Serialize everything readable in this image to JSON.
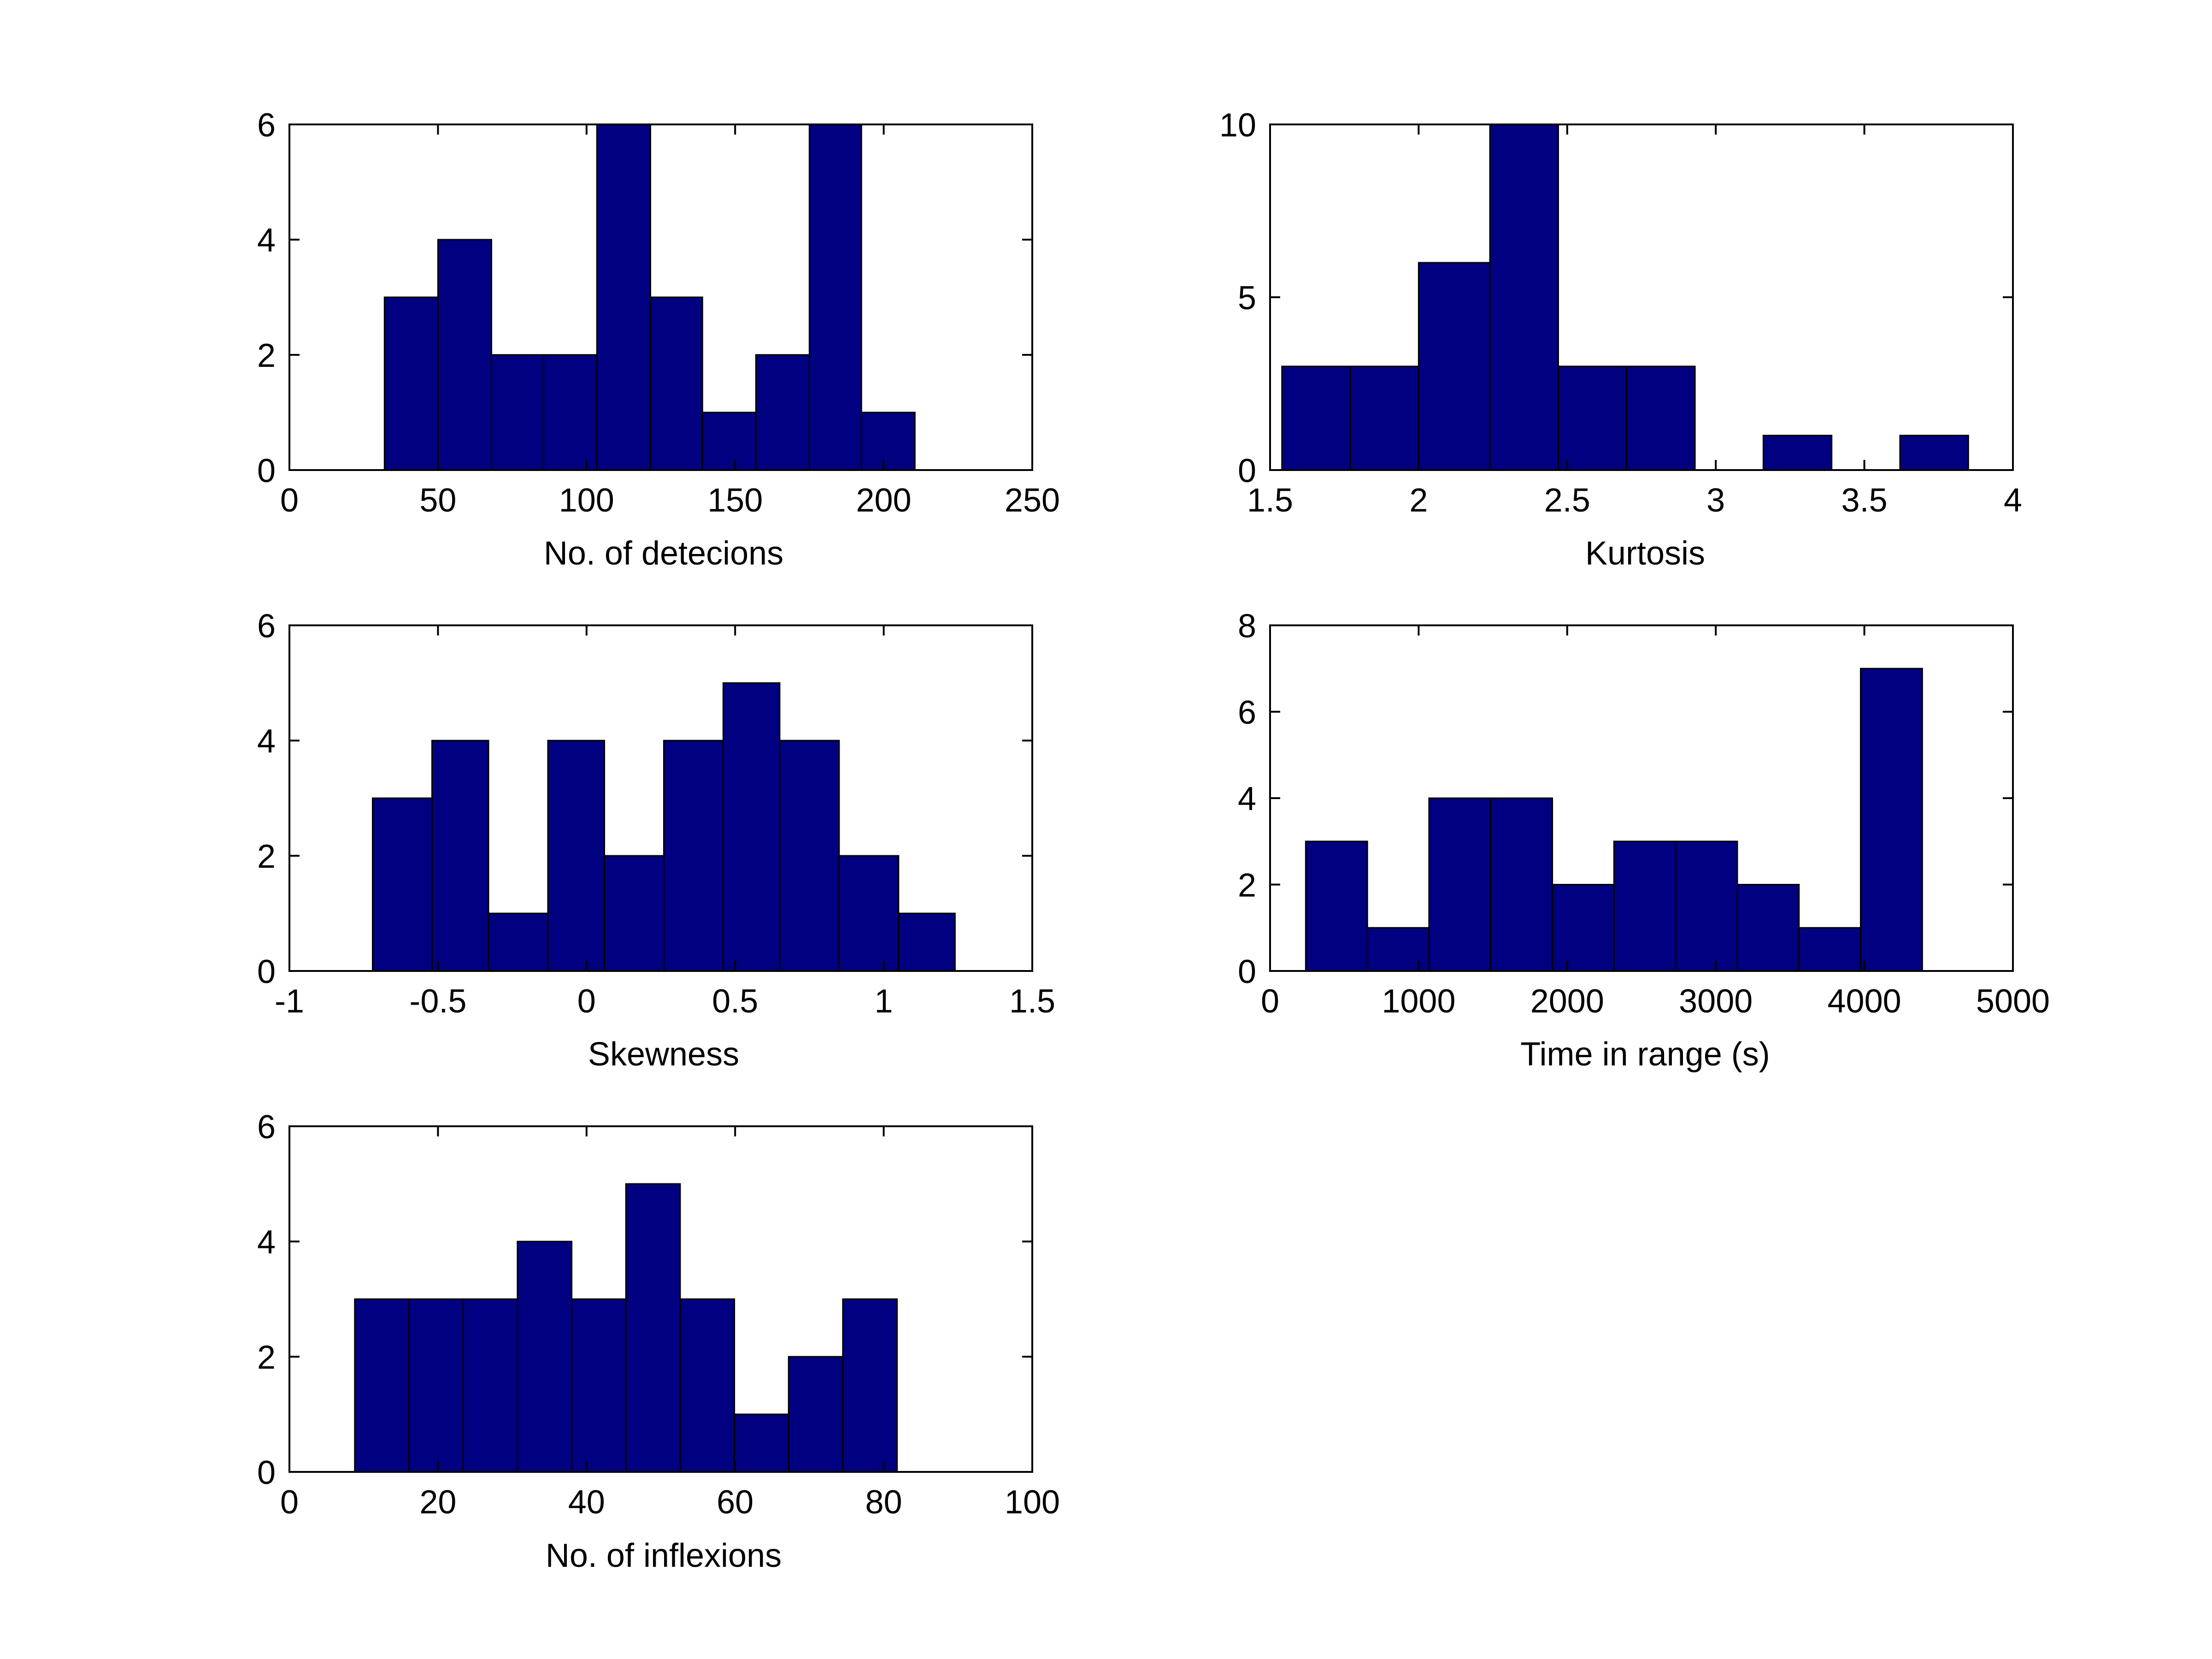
{
  "figure": {
    "background": "#ffffff"
  },
  "style": {
    "bar_color": "#000080",
    "edge_color": "#000000"
  },
  "chart_data": [
    {
      "type": "bar",
      "xlabel": "No. of detecions",
      "ylabel": "",
      "xlim": [
        0,
        250
      ],
      "ylim": [
        0,
        6
      ],
      "xticks": [
        0,
        50,
        100,
        150,
        200,
        250
      ],
      "yticks": [
        0,
        2,
        4,
        6
      ],
      "xtick_labels": [
        "0",
        "50",
        "100",
        "150",
        "200",
        "250"
      ],
      "ytick_labels": [
        "0",
        "2",
        "4",
        "6"
      ],
      "grid": false,
      "bins": [
        {
          "x0": 32,
          "x1": 50,
          "value": 3
        },
        {
          "x0": 50,
          "x1": 68,
          "value": 4
        },
        {
          "x0": 68,
          "x1": 85.5,
          "value": 2
        },
        {
          "x0": 85.5,
          "x1": 103.5,
          "value": 2
        },
        {
          "x0": 103.5,
          "x1": 121.5,
          "value": 6
        },
        {
          "x0": 121.5,
          "x1": 139,
          "value": 3
        },
        {
          "x0": 139,
          "x1": 157,
          "value": 1
        },
        {
          "x0": 157,
          "x1": 175,
          "value": 2
        },
        {
          "x0": 175,
          "x1": 192.5,
          "value": 6
        },
        {
          "x0": 192.5,
          "x1": 210.5,
          "value": 1
        }
      ]
    },
    {
      "type": "bar",
      "xlabel": "Kurtosis",
      "ylabel": "",
      "xlim": [
        1.5,
        4
      ],
      "ylim": [
        0,
        10
      ],
      "xticks": [
        1.5,
        2,
        2.5,
        3,
        3.5,
        4
      ],
      "yticks": [
        0,
        5,
        10
      ],
      "xtick_labels": [
        "1.5",
        "2",
        "2.5",
        "3",
        "3.5",
        "4"
      ],
      "ytick_labels": [
        "0",
        "5",
        "10"
      ],
      "grid": false,
      "bins": [
        {
          "x0": 1.54,
          "x1": 1.77,
          "value": 3
        },
        {
          "x0": 1.77,
          "x1": 2.0,
          "value": 3
        },
        {
          "x0": 2.0,
          "x1": 2.24,
          "value": 6
        },
        {
          "x0": 2.24,
          "x1": 2.47,
          "value": 10
        },
        {
          "x0": 2.47,
          "x1": 2.7,
          "value": 3
        },
        {
          "x0": 2.7,
          "x1": 2.93,
          "value": 3
        },
        {
          "x0": 2.93,
          "x1": 3.16,
          "value": 0
        },
        {
          "x0": 3.16,
          "x1": 3.39,
          "value": 1
        },
        {
          "x0": 3.39,
          "x1": 3.62,
          "value": 0
        },
        {
          "x0": 3.62,
          "x1": 3.85,
          "value": 1
        }
      ]
    },
    {
      "type": "bar",
      "xlabel": "Skewness",
      "ylabel": "",
      "xlim": [
        -1,
        1.5
      ],
      "ylim": [
        0,
        6
      ],
      "xticks": [
        -1,
        -0.5,
        0,
        0.5,
        1,
        1.5
      ],
      "yticks": [
        0,
        2,
        4,
        6
      ],
      "xtick_labels": [
        "-1",
        "-0.5",
        "0",
        "0.5",
        "1",
        "1.5"
      ],
      "ytick_labels": [
        "0",
        "2",
        "4",
        "6"
      ],
      "grid": false,
      "bins": [
        {
          "x0": -0.72,
          "x1": -0.52,
          "value": 3
        },
        {
          "x0": -0.52,
          "x1": -0.33,
          "value": 4
        },
        {
          "x0": -0.33,
          "x1": -0.13,
          "value": 1
        },
        {
          "x0": -0.13,
          "x1": 0.06,
          "value": 4
        },
        {
          "x0": 0.06,
          "x1": 0.26,
          "value": 2
        },
        {
          "x0": 0.26,
          "x1": 0.46,
          "value": 4
        },
        {
          "x0": 0.46,
          "x1": 0.65,
          "value": 5
        },
        {
          "x0": 0.65,
          "x1": 0.85,
          "value": 4
        },
        {
          "x0": 0.85,
          "x1": 1.05,
          "value": 2
        },
        {
          "x0": 1.05,
          "x1": 1.24,
          "value": 1
        }
      ]
    },
    {
      "type": "bar",
      "xlabel": "Time in range (s)",
      "ylabel": "",
      "xlim": [
        0,
        5000
      ],
      "ylim": [
        0,
        8
      ],
      "xticks": [
        0,
        1000,
        2000,
        3000,
        4000,
        5000
      ],
      "yticks": [
        0,
        2,
        4,
        6,
        8
      ],
      "xtick_labels": [
        "0",
        "1000",
        "2000",
        "3000",
        "4000",
        "5000"
      ],
      "ytick_labels": [
        "0",
        "2",
        "4",
        "6",
        "8"
      ],
      "grid": false,
      "bins": [
        {
          "x0": 240,
          "x1": 655,
          "value": 3
        },
        {
          "x0": 655,
          "x1": 1070,
          "value": 1
        },
        {
          "x0": 1070,
          "x1": 1485,
          "value": 4
        },
        {
          "x0": 1485,
          "x1": 1900,
          "value": 4
        },
        {
          "x0": 1900,
          "x1": 2315,
          "value": 2
        },
        {
          "x0": 2315,
          "x1": 2730,
          "value": 3
        },
        {
          "x0": 2730,
          "x1": 3145,
          "value": 3
        },
        {
          "x0": 3145,
          "x1": 3560,
          "value": 2
        },
        {
          "x0": 3560,
          "x1": 3975,
          "value": 1
        },
        {
          "x0": 3975,
          "x1": 4390,
          "value": 7
        }
      ]
    },
    {
      "type": "bar",
      "xlabel": "No. of inflexions",
      "ylabel": "",
      "xlim": [
        0,
        100
      ],
      "ylim": [
        0,
        6
      ],
      "xticks": [
        0,
        20,
        40,
        60,
        80,
        100
      ],
      "yticks": [
        0,
        2,
        4,
        6
      ],
      "xtick_labels": [
        "0",
        "20",
        "40",
        "60",
        "80",
        "100"
      ],
      "ytick_labels": [
        "0",
        "2",
        "4",
        "6"
      ],
      "grid": false,
      "bins": [
        {
          "x0": 8.8,
          "x1": 16.1,
          "value": 3
        },
        {
          "x0": 16.1,
          "x1": 23.4,
          "value": 3
        },
        {
          "x0": 23.4,
          "x1": 30.7,
          "value": 3
        },
        {
          "x0": 30.7,
          "x1": 38.0,
          "value": 4
        },
        {
          "x0": 38.0,
          "x1": 45.3,
          "value": 3
        },
        {
          "x0": 45.3,
          "x1": 52.6,
          "value": 5
        },
        {
          "x0": 52.6,
          "x1": 59.9,
          "value": 3
        },
        {
          "x0": 59.9,
          "x1": 67.2,
          "value": 1
        },
        {
          "x0": 67.2,
          "x1": 74.5,
          "value": 2
        },
        {
          "x0": 74.5,
          "x1": 81.8,
          "value": 3
        }
      ]
    }
  ]
}
